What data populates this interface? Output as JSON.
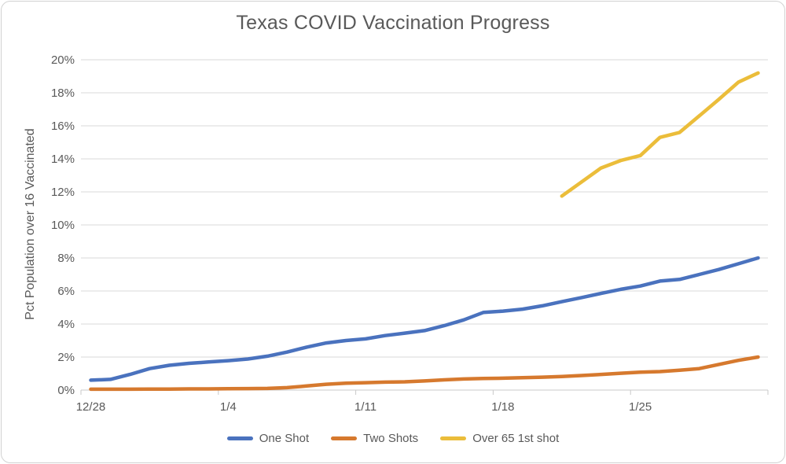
{
  "chart_data": {
    "type": "line",
    "title": "Texas COVID Vaccination Progress",
    "xlabel": "",
    "ylabel": "Pct Population over 16 Vaccinated",
    "ylim": [
      0,
      20
    ],
    "grid": true,
    "legend_position": "bottom",
    "y_tick_labels": [
      "0%",
      "2%",
      "4%",
      "6%",
      "8%",
      "10%",
      "12%",
      "14%",
      "16%",
      "18%",
      "20%"
    ],
    "x_tick_labels": [
      "12/28",
      "1/4",
      "1/11",
      "1/18",
      "1/25"
    ],
    "x": [
      "12/28",
      "12/29",
      "12/30",
      "12/31",
      "1/1",
      "1/2",
      "1/3",
      "1/4",
      "1/5",
      "1/6",
      "1/7",
      "1/8",
      "1/9",
      "1/10",
      "1/11",
      "1/12",
      "1/13",
      "1/14",
      "1/15",
      "1/16",
      "1/17",
      "1/18",
      "1/19",
      "1/20",
      "1/21",
      "1/22",
      "1/23",
      "1/24",
      "1/25",
      "1/26",
      "1/27",
      "1/28",
      "1/29",
      "1/30",
      "1/31"
    ],
    "series": [
      {
        "name": "One Shot",
        "color": "#4a72be",
        "start_index": 0,
        "values": [
          0.6,
          0.65,
          0.95,
          1.3,
          1.5,
          1.62,
          1.7,
          1.78,
          1.88,
          2.05,
          2.3,
          2.6,
          2.85,
          3.0,
          3.1,
          3.3,
          3.45,
          3.6,
          3.9,
          4.25,
          4.7,
          4.78,
          4.9,
          5.1,
          5.35,
          5.6,
          5.85,
          6.1,
          6.3,
          6.6,
          6.7,
          7.0,
          7.3,
          7.65,
          8.0
        ]
      },
      {
        "name": "Two Shots",
        "color": "#d6792e",
        "start_index": 0,
        "values": [
          0.05,
          0.05,
          0.05,
          0.06,
          0.06,
          0.07,
          0.07,
          0.08,
          0.09,
          0.1,
          0.15,
          0.25,
          0.35,
          0.42,
          0.45,
          0.48,
          0.5,
          0.55,
          0.62,
          0.67,
          0.7,
          0.72,
          0.75,
          0.78,
          0.82,
          0.88,
          0.95,
          1.02,
          1.08,
          1.12,
          1.2,
          1.3,
          1.55,
          1.8,
          2.0
        ]
      },
      {
        "name": "Over 65 1st shot",
        "color": "#ebbd3a",
        "start_index": 24,
        "values": [
          11.75,
          12.6,
          13.45,
          13.9,
          14.2,
          15.3,
          15.6,
          16.6,
          17.6,
          18.65,
          19.2
        ]
      }
    ],
    "colors": {
      "text": "#595959",
      "gridline": "#d9d9d9",
      "axis": "#c9c9c9"
    }
  }
}
